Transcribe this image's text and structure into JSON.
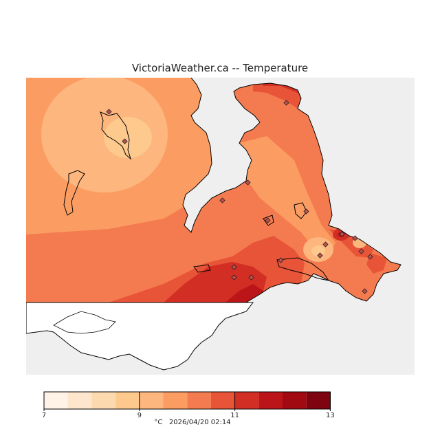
{
  "title": "VictoriaWeather.ca -- Temperature",
  "legend": {
    "unit": "°C",
    "timestamp": "2026/04/20 02:14",
    "colors": [
      "#fff2e6",
      "#fee6cc",
      "#fdd9b0",
      "#fdc98c",
      "#fcb67e",
      "#fb9d62",
      "#f47b4f",
      "#e85438",
      "#d22e24",
      "#bb1519",
      "#a00a10",
      "#7d0410"
    ],
    "ticks": [
      {
        "label": "7",
        "index": 0
      },
      {
        "label": "9",
        "index": 4
      },
      {
        "label": "11",
        "index": 8
      },
      {
        "label": "13",
        "index": 12
      }
    ]
  },
  "colors": {
    "sea": "#efefef",
    "land_white": "#ffffff",
    "coast": "#000000"
  },
  "stations_count": 18
}
